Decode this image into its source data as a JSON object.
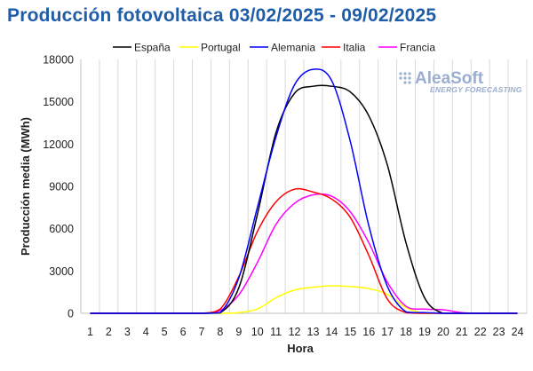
{
  "chart_data": {
    "type": "line",
    "title": "Producción fotovoltaica 03/02/2025 - 09/02/2025",
    "xlabel": "Hora",
    "ylabel": "Producción media (MWh)",
    "x": [
      1,
      2,
      3,
      4,
      5,
      6,
      7,
      8,
      9,
      10,
      11,
      12,
      13,
      14,
      15,
      16,
      17,
      18,
      19,
      20,
      21,
      22,
      23,
      24
    ],
    "xlim": [
      1,
      24
    ],
    "ylim": [
      0,
      18000
    ],
    "yticks": [
      0,
      3000,
      6000,
      9000,
      12000,
      15000,
      18000
    ],
    "ytick_labels": [
      "0",
      "3000",
      "6000",
      "9000",
      "12000",
      "15000",
      "18000"
    ],
    "grid": "vertical",
    "legend_position": "top",
    "series": [
      {
        "name": "España",
        "color": "#000000",
        "values": [
          0,
          0,
          0,
          0,
          0,
          0,
          0,
          30,
          1800,
          7000,
          12800,
          15600,
          16100,
          16100,
          15700,
          14000,
          10500,
          5000,
          1100,
          0,
          0,
          0,
          0,
          0
        ]
      },
      {
        "name": "Portugal",
        "color": "#ffff00",
        "values": [
          0,
          0,
          0,
          0,
          0,
          0,
          0,
          0,
          50,
          300,
          1100,
          1650,
          1850,
          1950,
          1900,
          1750,
          1350,
          400,
          0,
          0,
          0,
          0,
          0,
          0
        ]
      },
      {
        "name": "Alemania",
        "color": "#0000ff",
        "values": [
          0,
          0,
          0,
          0,
          0,
          0,
          0,
          50,
          2500,
          7500,
          12500,
          16200,
          17300,
          16500,
          12200,
          6200,
          1900,
          100,
          50,
          0,
          0,
          0,
          0,
          0
        ]
      },
      {
        "name": "Italia",
        "color": "#ff0000",
        "values": [
          0,
          0,
          0,
          0,
          0,
          0,
          0,
          300,
          2600,
          5800,
          7900,
          8800,
          8600,
          8100,
          6800,
          4100,
          1000,
          50,
          0,
          0,
          0,
          0,
          0,
          0
        ]
      },
      {
        "name": "Francia",
        "color": "#ff00ff",
        "values": [
          0,
          0,
          0,
          0,
          0,
          0,
          0,
          200,
          1300,
          3600,
          6300,
          7800,
          8400,
          8300,
          7200,
          5000,
          2200,
          500,
          300,
          250,
          50,
          0,
          0,
          0
        ]
      }
    ]
  },
  "logo": {
    "name": "AleaSoft",
    "tagline": "ENERGY FORECASTING"
  }
}
